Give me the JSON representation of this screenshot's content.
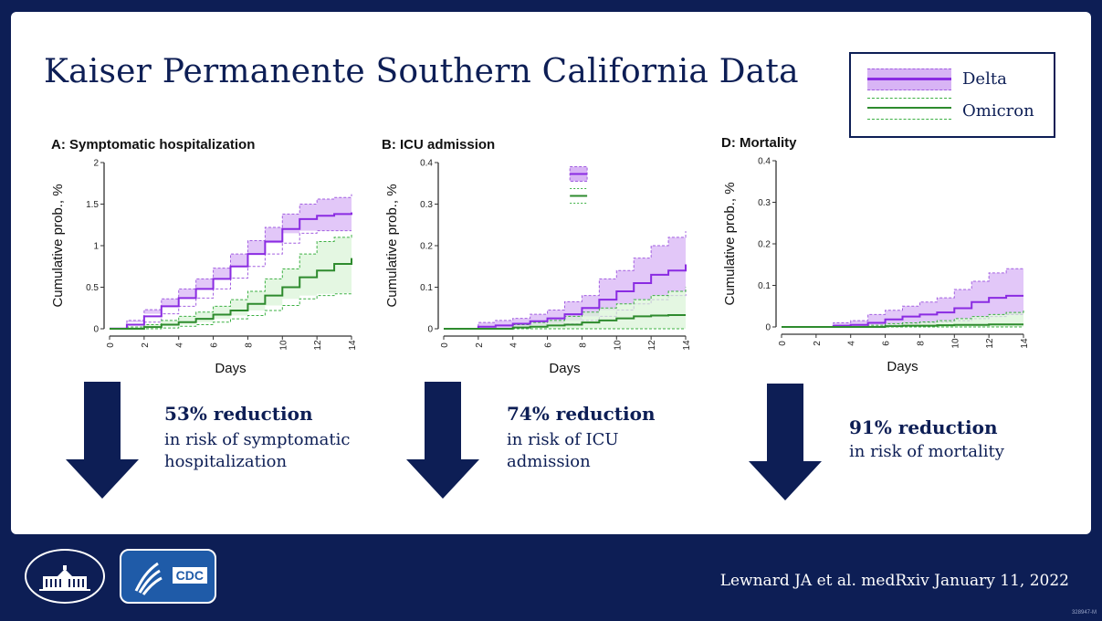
{
  "slide": {
    "title": "Kaiser Permanente Southern California Data",
    "citation": "Lewnard JA et al. medRxiv January 11, 2022",
    "footnote": "328947-M"
  },
  "legend": {
    "delta": "Delta",
    "omicron": "Omicron"
  },
  "colors": {
    "navy": "#0d1e55",
    "delta_fill": "#d8b4f5",
    "delta_line": "#8a2be2",
    "delta_edge": "#a25fe0",
    "omicron_fill": "#d9f3d5",
    "omicron_line": "#2e8b2e",
    "omicron_edge": "#3cb043"
  },
  "chart_data": [
    {
      "type": "line",
      "panel_title": "A: Symptomatic hospitalization",
      "xlabel": "Days",
      "ylabel": "Cumulative prob., %",
      "xlim": [
        0,
        14
      ],
      "ylim": [
        0,
        2
      ],
      "xticks": [
        "0",
        "2",
        "4",
        "6",
        "8",
        "10",
        "12",
        "14"
      ],
      "yticks": [
        "0",
        "0.5",
        "1",
        "1.5",
        "2"
      ],
      "x": [
        0,
        1,
        2,
        3,
        4,
        5,
        6,
        7,
        8,
        9,
        10,
        11,
        12,
        13,
        14
      ],
      "series": [
        {
          "name": "Delta",
          "values": [
            0,
            0.05,
            0.15,
            0.27,
            0.37,
            0.48,
            0.6,
            0.75,
            0.9,
            1.05,
            1.2,
            1.32,
            1.36,
            1.38,
            1.4
          ],
          "lower": [
            0,
            0.02,
            0.08,
            0.18,
            0.27,
            0.37,
            0.48,
            0.61,
            0.75,
            0.9,
            1.03,
            1.15,
            1.18,
            1.18,
            1.18
          ],
          "upper": [
            0,
            0.1,
            0.23,
            0.36,
            0.48,
            0.6,
            0.73,
            0.9,
            1.06,
            1.22,
            1.38,
            1.5,
            1.56,
            1.58,
            1.62
          ]
        },
        {
          "name": "Omicron",
          "values": [
            0,
            0,
            0.02,
            0.05,
            0.08,
            0.12,
            0.17,
            0.22,
            0.3,
            0.4,
            0.5,
            0.62,
            0.7,
            0.78,
            0.85
          ],
          "lower": [
            0,
            0,
            0,
            0.01,
            0.03,
            0.05,
            0.08,
            0.12,
            0.16,
            0.22,
            0.28,
            0.36,
            0.4,
            0.42,
            0.43
          ],
          "upper": [
            0,
            0.02,
            0.05,
            0.1,
            0.15,
            0.2,
            0.27,
            0.35,
            0.45,
            0.6,
            0.72,
            0.9,
            1.05,
            1.1,
            1.15
          ]
        }
      ]
    },
    {
      "type": "line",
      "panel_title": "B: ICU admission",
      "xlabel": "Days",
      "ylabel": "Cumulative prob., %",
      "xlim": [
        0,
        14
      ],
      "ylim": [
        0,
        0.4
      ],
      "xticks": [
        "0",
        "2",
        "4",
        "6",
        "8",
        "10",
        "12",
        "14"
      ],
      "yticks": [
        "0",
        "0.1",
        "0.2",
        "0.3",
        "0.4"
      ],
      "x": [
        0,
        1,
        2,
        3,
        4,
        5,
        6,
        7,
        8,
        9,
        10,
        11,
        12,
        13,
        14
      ],
      "series": [
        {
          "name": "Delta",
          "values": [
            0,
            0,
            0.005,
            0.008,
            0.012,
            0.018,
            0.025,
            0.035,
            0.05,
            0.07,
            0.09,
            0.11,
            0.13,
            0.14,
            0.155
          ],
          "lower": [
            0,
            0,
            0,
            0,
            0.002,
            0.005,
            0.008,
            0.012,
            0.02,
            0.03,
            0.045,
            0.06,
            0.07,
            0.08,
            0.09
          ],
          "upper": [
            0,
            0,
            0.015,
            0.02,
            0.025,
            0.035,
            0.045,
            0.065,
            0.08,
            0.12,
            0.14,
            0.17,
            0.2,
            0.22,
            0.235
          ]
        },
        {
          "name": "Omicron",
          "values": [
            0,
            0,
            0,
            0,
            0.003,
            0.005,
            0.008,
            0.01,
            0.015,
            0.02,
            0.025,
            0.03,
            0.032,
            0.033,
            0.033
          ],
          "lower": [
            0,
            0,
            0,
            0,
            0,
            0,
            0,
            0,
            0,
            0,
            0,
            0,
            0,
            0,
            0
          ],
          "upper": [
            0,
            0,
            0,
            0,
            0.01,
            0.015,
            0.02,
            0.03,
            0.04,
            0.05,
            0.06,
            0.07,
            0.08,
            0.09,
            0.1
          ]
        }
      ]
    },
    {
      "type": "line",
      "panel_title": "D: Mortality",
      "xlabel": "Days",
      "ylabel": "Cumulative prob., %",
      "xlim": [
        0,
        14
      ],
      "ylim": [
        0,
        0.4
      ],
      "xticks": [
        "0",
        "2",
        "4",
        "6",
        "8",
        "10",
        "12",
        "14"
      ],
      "yticks": [
        "0",
        "0.1",
        "0.2",
        "0.3",
        "0.4"
      ],
      "x": [
        0,
        1,
        2,
        3,
        4,
        5,
        6,
        7,
        8,
        9,
        10,
        11,
        12,
        13,
        14
      ],
      "series": [
        {
          "name": "Delta",
          "values": [
            0,
            0,
            0,
            0.003,
            0.005,
            0.01,
            0.018,
            0.025,
            0.03,
            0.035,
            0.045,
            0.06,
            0.07,
            0.075,
            0.075
          ],
          "lower": [
            0,
            0,
            0,
            0,
            0,
            0.002,
            0.005,
            0.008,
            0.01,
            0.012,
            0.015,
            0.02,
            0.025,
            0.03,
            0.03
          ],
          "upper": [
            0,
            0,
            0,
            0.01,
            0.015,
            0.03,
            0.04,
            0.05,
            0.06,
            0.07,
            0.09,
            0.11,
            0.13,
            0.14,
            0.14
          ]
        },
        {
          "name": "Omicron",
          "values": [
            0,
            0,
            0,
            0,
            0,
            0,
            0.002,
            0.003,
            0.003,
            0.004,
            0.005,
            0.005,
            0.006,
            0.006,
            0.006
          ],
          "lower": [
            0,
            0,
            0,
            0,
            0,
            0,
            0,
            0,
            0,
            0,
            0,
            0,
            0,
            0,
            0
          ],
          "upper": [
            0,
            0,
            0,
            0,
            0,
            0.004,
            0.008,
            0.01,
            0.012,
            0.015,
            0.02,
            0.025,
            0.03,
            0.035,
            0.04
          ]
        }
      ]
    }
  ],
  "stats": [
    {
      "headline": "53% reduction",
      "body": "in risk of symptomatic\nhospitalization"
    },
    {
      "headline": "74% reduction",
      "body": "in risk of ICU\nadmission"
    },
    {
      "headline": "91% reduction",
      "body": "in risk of mortality"
    }
  ]
}
